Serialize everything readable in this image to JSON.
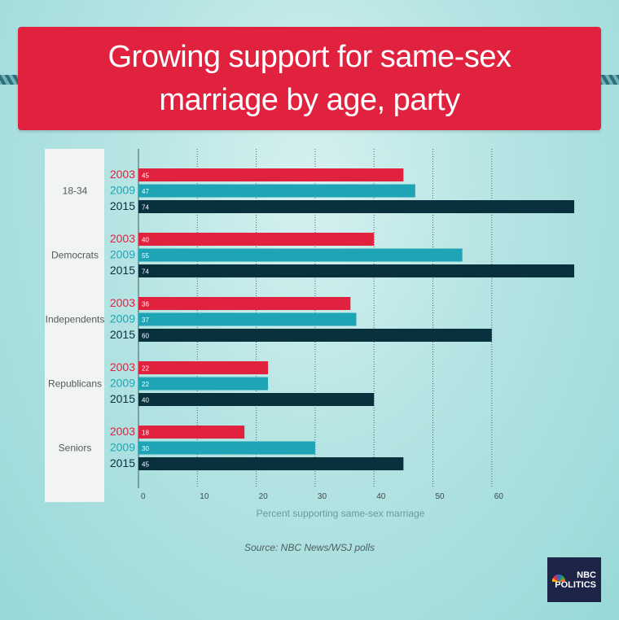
{
  "title": "Growing support for same-sex marriage by age, party",
  "source": "Source: NBC News/WSJ polls",
  "logo": {
    "line1": "NBC",
    "line2": "POLITICS"
  },
  "colors": {
    "2003": "#e0223f",
    "2009": "#1fa4b5",
    "2015": "#08303d",
    "banner": "#e0223f"
  },
  "chart_data": {
    "type": "bar",
    "orientation": "horizontal",
    "xlabel": "Percent supporting same-sex marriage",
    "xlim": [
      0,
      74
    ],
    "xticks": [
      0,
      10,
      20,
      30,
      40,
      50,
      60
    ],
    "categories": [
      "18-34",
      "Democrats",
      "Independents",
      "Republicans",
      "Seniors"
    ],
    "series": [
      {
        "name": "2003",
        "values": [
          45,
          40,
          36,
          22,
          18
        ]
      },
      {
        "name": "2009",
        "values": [
          47,
          55,
          37,
          22,
          30
        ]
      },
      {
        "name": "2015",
        "values": [
          74,
          74,
          60,
          40,
          45
        ]
      }
    ],
    "grid": "vertical dotted"
  }
}
